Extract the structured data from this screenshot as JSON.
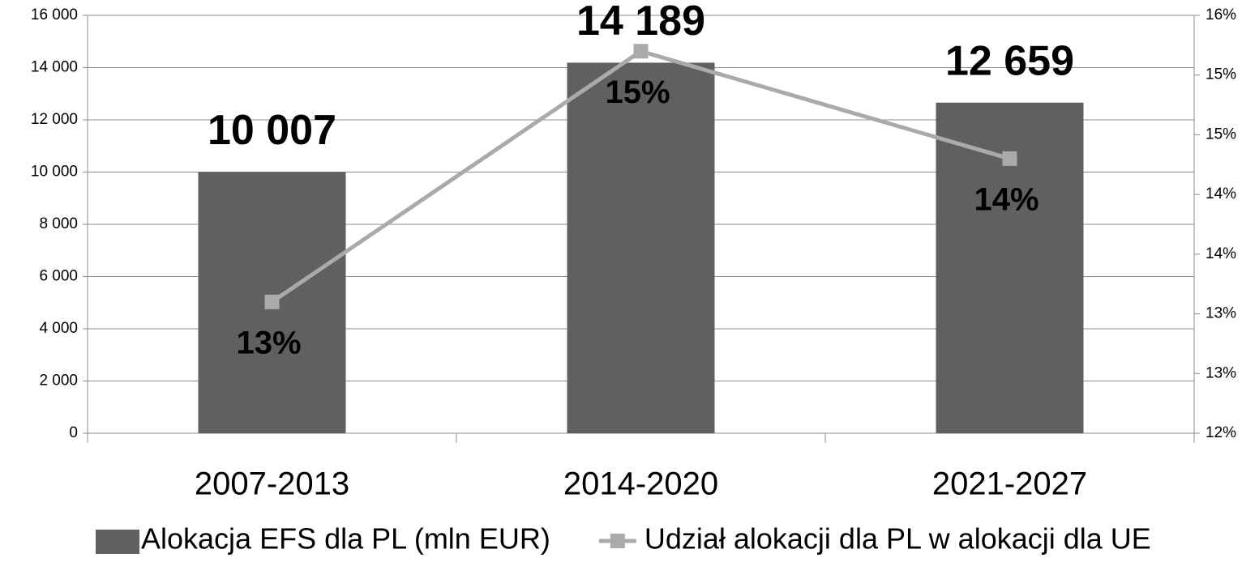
{
  "chart_data": {
    "type": "bar",
    "categories": [
      "2007-2013",
      "2014-2020",
      "2021-2027"
    ],
    "series": [
      {
        "name": "Alokacja EFS dla PL (mln EUR)",
        "type": "bar",
        "color": "#606060",
        "values": [
          10007,
          14189,
          12659
        ],
        "value_labels": [
          "10 007",
          "14 189",
          "12 659"
        ]
      },
      {
        "name": "Udział alokacji dla PL w alokacji dla UE",
        "type": "line",
        "axis": "y2",
        "color": "#aaaaaa",
        "values": [
          13.1,
          15.2,
          14.3
        ],
        "value_labels": [
          "13%",
          "15%",
          "14%"
        ]
      }
    ],
    "ylim": [
      0,
      16000
    ],
    "yticks": [
      0,
      {
        "value": 2000,
        "label": "2 000"
      },
      {
        "value": 4000,
        "label": "4 000"
      },
      {
        "value": 6000,
        "label": "6 000"
      },
      {
        "value": 8000,
        "label": "8 000"
      },
      {
        "value": 10000,
        "label": "10 000"
      },
      {
        "value": 12000,
        "label": "12 000"
      },
      {
        "value": 14000,
        "label": "14 000"
      },
      {
        "value": 16000,
        "label": "16 000"
      }
    ],
    "y2lim": [
      12,
      15.5
    ],
    "y2ticks": [
      {
        "value": 12,
        "label": "12%"
      },
      {
        "value": 12.5,
        "label": "13%"
      },
      {
        "value": 13,
        "label": "13%"
      },
      {
        "value": 13.5,
        "label": "14%"
      },
      {
        "value": 14,
        "label": "14%"
      },
      {
        "value": 14.5,
        "label": "15%"
      },
      {
        "value": 15,
        "label": "15%"
      },
      {
        "value": 15.5,
        "label": "16%"
      }
    ],
    "grid": true,
    "legend": "bottom"
  }
}
